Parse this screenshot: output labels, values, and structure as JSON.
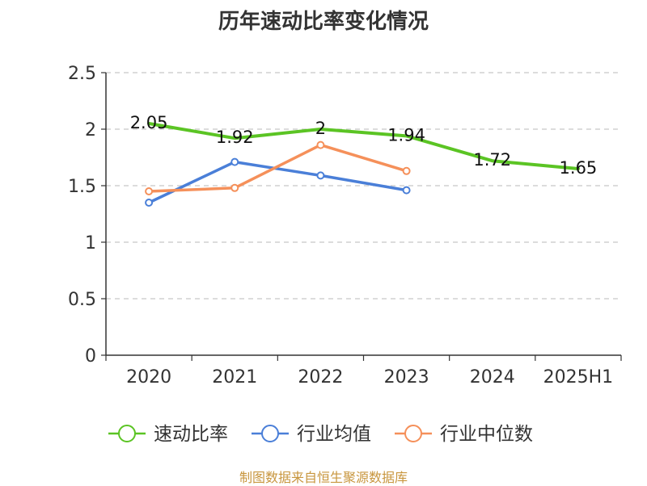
{
  "title": "历年速动比率变化情况",
  "source": "制图数据来自恒生聚源数据库",
  "chart_data": {
    "type": "line",
    "title": "历年速动比率变化情况",
    "categories": [
      "2020",
      "2021",
      "2022",
      "2023",
      "2024",
      "2025H1"
    ],
    "ylim": [
      0,
      2.5
    ],
    "yticks": [
      0,
      0.5,
      1,
      1.5,
      2,
      2.5
    ],
    "ytick_labels": [
      "0",
      "0.5",
      "1",
      "1.5",
      "2",
      "2.5"
    ],
    "grid": true,
    "legend_position": "bottom",
    "series": [
      {
        "name": "速动比率",
        "color": "#5bc424",
        "values": [
          2.05,
          1.92,
          2.0,
          1.94,
          1.72,
          1.65
        ],
        "labels": [
          "2.05",
          "1.92",
          "2",
          "1.94",
          "1.72",
          "1.65"
        ],
        "markers": false
      },
      {
        "name": "行业均值",
        "color": "#4a7fd8",
        "values": [
          1.35,
          1.71,
          1.59,
          1.46,
          null,
          null
        ],
        "markers": true
      },
      {
        "name": "行业中位数",
        "color": "#f5905a",
        "values": [
          1.45,
          1.48,
          1.86,
          1.63,
          null,
          null
        ],
        "markers": true
      }
    ]
  }
}
